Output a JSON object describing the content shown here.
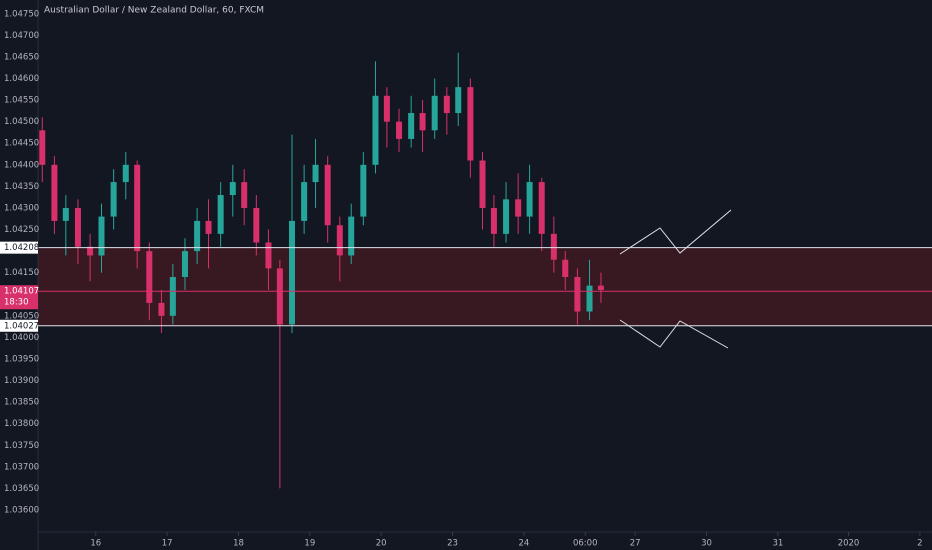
{
  "chart_data": {
    "type": "candlestick",
    "title": "Australian Dollar / New Zealand Dollar, 60, FXCM",
    "up_color": "#26a69a",
    "down_color": "#d8306a",
    "ylim": [
      1.03549,
      1.04782
    ],
    "yticks": [
      {
        "value": 1.0475,
        "label": "1.04750"
      },
      {
        "value": 1.047,
        "label": "1.04700"
      },
      {
        "value": 1.0465,
        "label": "1.04650"
      },
      {
        "value": 1.046,
        "label": "1.04600"
      },
      {
        "value": 1.0455,
        "label": "1.04550"
      },
      {
        "value": 1.045,
        "label": "1.04500"
      },
      {
        "value": 1.0445,
        "label": "1.04450"
      },
      {
        "value": 1.044,
        "label": "1.04400"
      },
      {
        "value": 1.0435,
        "label": "1.04350"
      },
      {
        "value": 1.043,
        "label": "1.04300"
      },
      {
        "value": 1.0425,
        "label": "1.04250"
      },
      {
        "value": 1.0415,
        "label": "1.04150"
      },
      {
        "value": 1.0405,
        "label": "1.04050"
      },
      {
        "value": 1.04,
        "label": "1.04000"
      },
      {
        "value": 1.0395,
        "label": "1.03950"
      },
      {
        "value": 1.039,
        "label": "1.03900"
      },
      {
        "value": 1.0385,
        "label": "1.03850"
      },
      {
        "value": 1.038,
        "label": "1.03800"
      },
      {
        "value": 1.0375,
        "label": "1.03750"
      },
      {
        "value": 1.037,
        "label": "1.03700"
      },
      {
        "value": 1.0365,
        "label": "1.03650"
      },
      {
        "value": 1.036,
        "label": "1.03600"
      }
    ],
    "xlim": [
      0.19,
      12.72
    ],
    "xticks": [
      {
        "value": 1,
        "label": "16"
      },
      {
        "value": 2,
        "label": "17"
      },
      {
        "value": 3,
        "label": "18"
      },
      {
        "value": 4,
        "label": "19"
      },
      {
        "value": 5,
        "label": "20"
      },
      {
        "value": 6,
        "label": "23"
      },
      {
        "value": 7,
        "label": "24"
      },
      {
        "value": 7.86,
        "label": "06:00"
      },
      {
        "value": 8.56,
        "label": "27"
      },
      {
        "value": 9.56,
        "label": "30"
      },
      {
        "value": 10.56,
        "label": "31"
      },
      {
        "value": 11.55,
        "label": "2020"
      },
      {
        "value": 12.55,
        "label": "2"
      }
    ],
    "levels": [
      {
        "value": 1.04208,
        "label": "1.04208"
      },
      {
        "value": 1.04027,
        "label": "1.04027"
      }
    ],
    "last_price": {
      "value": 1.04107,
      "label": "1.04107",
      "countdown": "18:30"
    },
    "candles": {
      "x": [
        0.25,
        0.42,
        0.58,
        0.75,
        0.92,
        1.08,
        1.25,
        1.42,
        1.58,
        1.75,
        1.92,
        2.08,
        2.25,
        2.42,
        2.58,
        2.75,
        2.92,
        3.08,
        3.25,
        3.42,
        3.58,
        3.75,
        3.92,
        4.08,
        4.25,
        4.42,
        4.58,
        4.75,
        4.92,
        5.08,
        5.25,
        5.42,
        5.58,
        5.75,
        5.92,
        6.08,
        6.25,
        6.42,
        6.58,
        6.75,
        6.92,
        7.08,
        7.25,
        7.42,
        7.58,
        7.75,
        7.92,
        8.08
      ],
      "open": [
        1.0448,
        1.044,
        1.0427,
        1.043,
        1.0421,
        1.0419,
        1.0428,
        1.0436,
        1.044,
        1.042,
        1.0408,
        1.0405,
        1.0414,
        1.042,
        1.0427,
        1.0424,
        1.0433,
        1.0436,
        1.043,
        1.0422,
        1.0416,
        1.0403,
        1.0427,
        1.0436,
        1.044,
        1.0426,
        1.0419,
        1.0428,
        1.044,
        1.0456,
        1.045,
        1.0446,
        1.0452,
        1.0448,
        1.0456,
        1.0452,
        1.0458,
        1.0441,
        1.043,
        1.0424,
        1.0432,
        1.0428,
        1.0436,
        1.0424,
        1.0418,
        1.0414,
        1.0406,
        1.0412
      ],
      "high": [
        1.0451,
        1.0442,
        1.0433,
        1.0432,
        1.0424,
        1.0431,
        1.0439,
        1.0443,
        1.0441,
        1.0422,
        1.0411,
        1.0417,
        1.0423,
        1.043,
        1.0432,
        1.0436,
        1.044,
        1.0439,
        1.0433,
        1.0425,
        1.0418,
        1.0447,
        1.044,
        1.0446,
        1.0442,
        1.0428,
        1.0431,
        1.0443,
        1.0464,
        1.0458,
        1.0453,
        1.0456,
        1.0455,
        1.046,
        1.0458,
        1.0466,
        1.046,
        1.0443,
        1.0433,
        1.0436,
        1.0438,
        1.044,
        1.0437,
        1.0428,
        1.042,
        1.0416,
        1.0418,
        1.0415
      ],
      "low": [
        1.0436,
        1.0424,
        1.0419,
        1.0417,
        1.0413,
        1.0415,
        1.0425,
        1.0432,
        1.0416,
        1.0404,
        1.0401,
        1.0403,
        1.0411,
        1.0417,
        1.0416,
        1.0421,
        1.0428,
        1.0426,
        1.0419,
        1.0411,
        1.0365,
        1.0401,
        1.0424,
        1.043,
        1.0422,
        1.0413,
        1.0417,
        1.0426,
        1.0438,
        1.0444,
        1.0443,
        1.0444,
        1.0443,
        1.0446,
        1.0447,
        1.0449,
        1.0437,
        1.0425,
        1.0421,
        1.0422,
        1.0424,
        1.0424,
        1.042,
        1.0415,
        1.0411,
        1.0403,
        1.0404,
        1.0408
      ],
      "close": [
        1.044,
        1.0427,
        1.043,
        1.0421,
        1.0419,
        1.0428,
        1.0436,
        1.044,
        1.042,
        1.0408,
        1.0405,
        1.0414,
        1.042,
        1.0427,
        1.0424,
        1.0433,
        1.0436,
        1.043,
        1.0422,
        1.0416,
        1.0403,
        1.0427,
        1.0436,
        1.044,
        1.0426,
        1.0419,
        1.0428,
        1.044,
        1.0456,
        1.045,
        1.0446,
        1.0452,
        1.0448,
        1.0456,
        1.0452,
        1.0458,
        1.0441,
        1.043,
        1.0424,
        1.0432,
        1.0428,
        1.0436,
        1.0424,
        1.0418,
        1.0414,
        1.0406,
        1.0412,
        1.0411
      ]
    }
  }
}
